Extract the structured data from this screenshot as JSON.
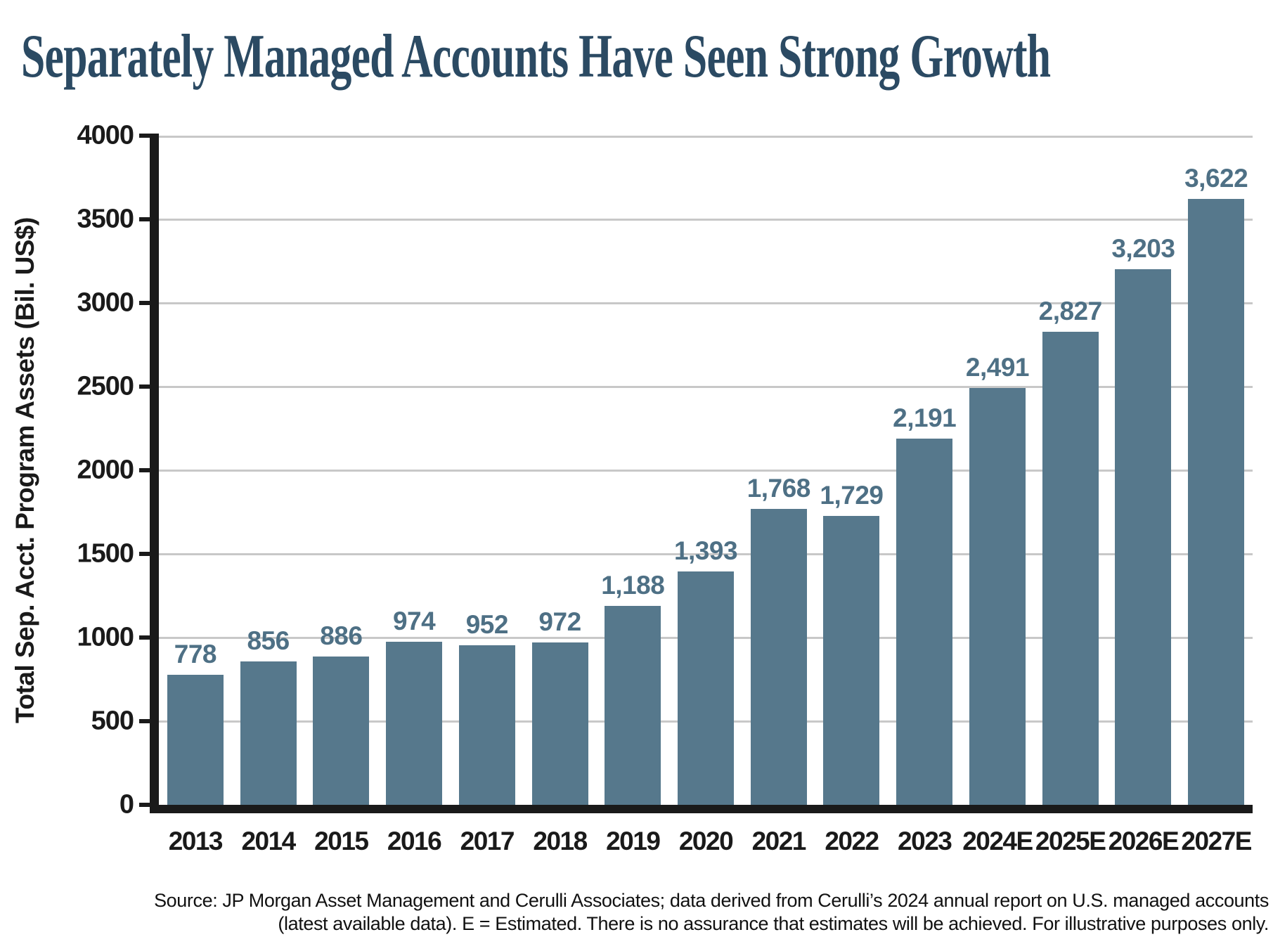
{
  "page": {
    "title": "Separately Managed Accounts Have Seen Strong Growth",
    "source_line1": "Source: JP Morgan Asset Management and Cerulli Associates; data derived from Cerulli’s 2024 annual report on U.S. managed accounts",
    "source_line2": "(latest available data). E = Estimated. There is no assurance that estimates will be achieved. For illustrative purposes only."
  },
  "colors": {
    "bar": "#56788C",
    "value_label": "#4E7085",
    "title": "#2B4A63",
    "axis": "#1A1A1A",
    "gridline": "#C8C8C8"
  },
  "chart_data": {
    "type": "bar",
    "title": "Separately Managed Accounts Have Seen Strong Growth",
    "xlabel": "",
    "ylabel": "Total Sep. Acct. Program Assets (Bil. US$)",
    "categories": [
      "2013",
      "2014",
      "2015",
      "2016",
      "2017",
      "2018",
      "2019",
      "2020",
      "2021",
      "2022",
      "2023",
      "2024E",
      "2025E",
      "2026E",
      "2027E"
    ],
    "values": [
      778,
      856,
      886,
      974,
      952,
      972,
      1188,
      1393,
      1768,
      1729,
      2191,
      2491,
      2827,
      3203,
      3622
    ],
    "value_labels": [
      "778",
      "856",
      "886",
      "974",
      "952",
      "972",
      "1,188",
      "1,393",
      "1,768",
      "1,729",
      "2,191",
      "2,491",
      "2,827",
      "3,203",
      "3,622"
    ],
    "ylim": [
      0,
      4000
    ],
    "yticks": [
      0,
      500,
      1000,
      1500,
      2000,
      2500,
      3000,
      3500,
      4000
    ],
    "grid": "horizontal",
    "legend": "none"
  }
}
